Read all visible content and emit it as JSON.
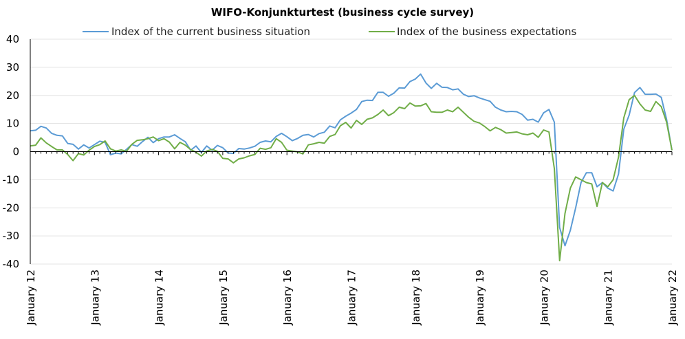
{
  "chart_data": {
    "type": "line",
    "title": "WIFO-Konjunkturtest (business cycle survey)",
    "xlabel": "",
    "ylabel": "",
    "ylim": [
      -40,
      40
    ],
    "yticks": [
      -40,
      -30,
      -20,
      -10,
      0,
      10,
      20,
      30,
      40
    ],
    "xticks": [
      "January 12",
      "January 13",
      "January 14",
      "January 15",
      "January 16",
      "January 17",
      "January 18",
      "January 19",
      "January 20",
      "January 21",
      "January 22"
    ],
    "x_start": "2012-01",
    "x_end": "2022-01",
    "grid": "horizontal",
    "legend": "top",
    "series": [
      {
        "name": "Index of the current business situation",
        "color": "#5b9bd5",
        "values": [
          7.4,
          7.6,
          9.0,
          8.4,
          6.5,
          5.8,
          5.6,
          2.9,
          2.6,
          0.9,
          2.4,
          1.3,
          2.5,
          3.7,
          3.3,
          -1.1,
          -0.5,
          -0.8,
          0.8,
          2.5,
          1.9,
          3.6,
          5.1,
          3.2,
          4.6,
          5.2,
          5.2,
          6.0,
          4.7,
          3.5,
          0.5,
          2.0,
          -0.3,
          2.0,
          0.5,
          2.2,
          1.4,
          -0.5,
          -0.6,
          1.1,
          0.9,
          1.3,
          1.9,
          3.3,
          3.8,
          3.5,
          5.4,
          6.5,
          5.3,
          3.9,
          4.7,
          5.8,
          6.1,
          5.2,
          6.4,
          6.9,
          9.1,
          8.5,
          11.3,
          12.6,
          13.7,
          15.0,
          17.8,
          18.3,
          18.2,
          21.1,
          21.1,
          19.7,
          20.8,
          22.7,
          22.6,
          24.9,
          25.8,
          27.6,
          24.4,
          22.5,
          24.3,
          22.9,
          22.8,
          22.0,
          22.3,
          20.4,
          19.6,
          19.9,
          19.1,
          18.5,
          17.9,
          15.8,
          14.8,
          14.2,
          14.3,
          14.2,
          13.2,
          11.2,
          11.5,
          10.5,
          13.8,
          15.0,
          10.5,
          -27.0,
          -33.5,
          -28.0,
          -20.0,
          -11.0,
          -7.5,
          -7.5,
          -12.5,
          -11.0,
          -13.0,
          -14.0,
          -8.0,
          8.0,
          13.0,
          21.0,
          22.8,
          20.4,
          20.4,
          20.5,
          19.3,
          11.5,
          0.5
        ]
      },
      {
        "name": "Index of the business expectations",
        "color": "#70ad47",
        "values": [
          2.0,
          2.3,
          4.9,
          3.1,
          1.8,
          0.6,
          0.6,
          -1.0,
          -3.2,
          -0.7,
          -1.2,
          0.5,
          1.8,
          2.5,
          3.8,
          1.0,
          0.2,
          0.6,
          0.1,
          2.6,
          4.0,
          4.2,
          4.6,
          5.2,
          3.9,
          4.6,
          3.4,
          1.0,
          3.3,
          2.3,
          0.7,
          -0.2,
          -1.6,
          0.2,
          0.8,
          0.1,
          -2.4,
          -2.6,
          -4.0,
          -2.6,
          -2.2,
          -1.5,
          -1.0,
          1.2,
          0.8,
          1.4,
          4.6,
          3.3,
          0.5,
          0.2,
          -0.1,
          -0.8,
          2.4,
          2.8,
          3.3,
          3.0,
          5.4,
          6.1,
          9.2,
          10.4,
          8.4,
          11.1,
          9.7,
          11.5,
          12.0,
          13.2,
          14.8,
          12.8,
          13.9,
          15.8,
          15.3,
          17.3,
          16.2,
          16.3,
          17.1,
          14.2,
          14.0,
          14.0,
          14.8,
          14.2,
          15.8,
          14.0,
          12.2,
          10.8,
          10.2,
          8.9,
          7.4,
          8.6,
          7.8,
          6.6,
          6.8,
          7.0,
          6.3,
          6.0,
          6.6,
          5.1,
          7.7,
          7.0,
          -6.0,
          -38.8,
          -22.0,
          -13.0,
          -9.0,
          -10.0,
          -11.0,
          -11.5,
          -19.5,
          -11.0,
          -12.5,
          -10.0,
          -2.0,
          12.0,
          18.5,
          20.0,
          17.0,
          14.8,
          14.3,
          17.8,
          16.0,
          10.5,
          0.5
        ]
      }
    ]
  }
}
